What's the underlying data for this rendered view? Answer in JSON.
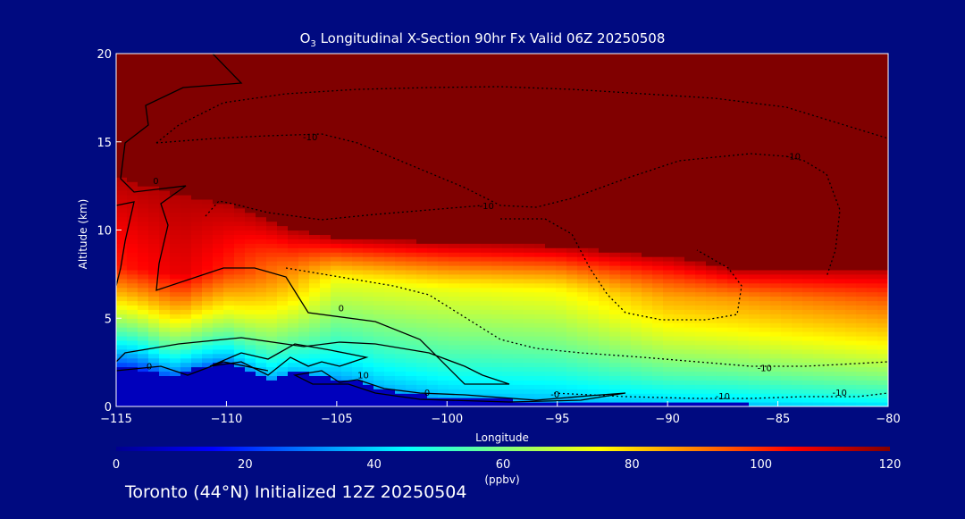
{
  "chart_data": {
    "type": "heatmap",
    "title_prefix": "O",
    "title_sub": "3",
    "title_rest": " Longitudinal X-Section 90hr  Fx Valid 06Z 20250508",
    "xlabel": "Longitude",
    "ylabel": "Altitude (km)",
    "xlim": [
      -115,
      -80
    ],
    "ylim": [
      0,
      20
    ],
    "x_ticks": [
      -115,
      -110,
      -105,
      -100,
      -95,
      -90,
      -85,
      -80
    ],
    "x_tick_labels": [
      "−115",
      "−110",
      "−105",
      "−100",
      "−95",
      "−90",
      "−85",
      "−80"
    ],
    "y_ticks": [
      0,
      5,
      10,
      15,
      20
    ],
    "y_tick_labels": [
      "0",
      "5",
      "10",
      "15",
      "20"
    ],
    "colorbar": {
      "min": 0,
      "max": 120,
      "ticks": [
        0,
        20,
        40,
        60,
        80,
        100,
        120
      ],
      "tick_labels": [
        "0",
        "20",
        "40",
        "60",
        "80",
        "100",
        "120"
      ],
      "label": "(ppbv)"
    },
    "field_profiles": [
      {
        "lon": -115,
        "boundary_km": 13,
        "upper": 0.1,
        "mid_alt": 8,
        "mid": 0.85,
        "surface": 0.15
      },
      {
        "lon": -112,
        "boundary_km": 12,
        "upper": 0.1,
        "mid_alt": 7.5,
        "mid": 0.9,
        "surface": 0.2
      },
      {
        "lon": -110,
        "boundary_km": 11.5,
        "upper": 0.15,
        "mid_alt": 8,
        "mid": 0.85,
        "surface": 0.25
      },
      {
        "lon": -107,
        "boundary_km": 10,
        "upper": 0.2,
        "mid_alt": 7,
        "mid": 0.7,
        "surface": 0.3
      },
      {
        "lon": -105,
        "boundary_km": 9.6,
        "upper": 0.2,
        "mid_alt": 7,
        "mid": 0.6,
        "surface": 0.28
      },
      {
        "lon": -100,
        "boundary_km": 9.3,
        "upper": 0.22,
        "mid_alt": 6.5,
        "mid": 0.6,
        "surface": 0.3
      },
      {
        "lon": -95,
        "boundary_km": 9.1,
        "upper": 0.25,
        "mid_alt": 6.5,
        "mid": 0.62,
        "surface": 0.3
      },
      {
        "lon": -90,
        "boundary_km": 8.5,
        "upper": 0.28,
        "mid_alt": 6,
        "mid": 0.7,
        "surface": 0.32
      },
      {
        "lon": -87,
        "boundary_km": 7.8,
        "upper": 0.3,
        "mid_alt": 6,
        "mid": 0.72,
        "surface": 0.32
      },
      {
        "lon": -80,
        "boundary_km": 7.8,
        "upper": 0.3,
        "mid_alt": 5.5,
        "mid": 0.75,
        "surface": 0.35
      }
    ],
    "ground_km": [
      [
        -115,
        2.2
      ],
      [
        -114,
        2.2
      ],
      [
        -112.5,
        1.6
      ],
      [
        -111,
        2.3
      ],
      [
        -110,
        2.6
      ],
      [
        -108,
        1.6
      ],
      [
        -107,
        2.0
      ],
      [
        -105,
        1.6
      ],
      [
        -104,
        1.4
      ],
      [
        -103,
        1.0
      ],
      [
        -100,
        0.5
      ],
      [
        -95,
        0.3
      ],
      [
        -90,
        0.2
      ],
      [
        -85,
        0.1
      ],
      [
        -80,
        0.1
      ]
    ],
    "contour_labels": [
      {
        "text": "0",
        "lon": -113.2,
        "alt": 12.6
      },
      {
        "text": "-10",
        "lon": -106.2,
        "alt": 15.1
      },
      {
        "text": "-10",
        "lon": -98.2,
        "alt": 11.2
      },
      {
        "text": "-10",
        "lon": -84.3,
        "alt": 14.0
      },
      {
        "text": "0",
        "lon": -104.8,
        "alt": 5.4
      },
      {
        "text": "10",
        "lon": -103.8,
        "alt": 1.6
      },
      {
        "text": "0",
        "lon": -113.5,
        "alt": 2.1
      },
      {
        "text": "0",
        "lon": -100.9,
        "alt": 0.6
      },
      {
        "text": "-0",
        "lon": -95.1,
        "alt": 0.5
      },
      {
        "text": "-10",
        "lon": -85.6,
        "alt": 2.0
      },
      {
        "text": "-10",
        "lon": -87.5,
        "alt": 0.4
      },
      {
        "text": "-10",
        "lon": -82.2,
        "alt": 0.6
      }
    ],
    "footer": "Toronto (44°N) Initialized 12Z 20250504"
  }
}
